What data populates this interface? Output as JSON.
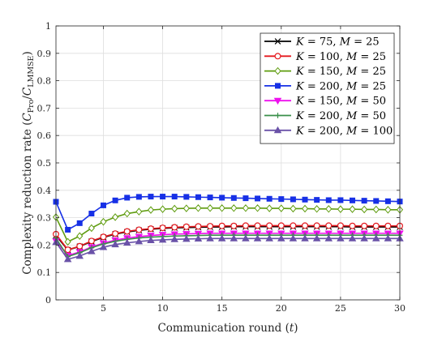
{
  "chart_data": {
    "type": "line",
    "xlabel": "Communication round (t)",
    "ylabel": "Complexity reduction rate (C_Pro/C_LMMSE)",
    "xlabel_parts": {
      "text": "Communication round (",
      "var": "t",
      "close": ")"
    },
    "ylabel_parts": {
      "text": "Complexity reduction rate (",
      "num": "C",
      "num_sub": "Pro",
      "den": "C",
      "den_sub": "LMMSE",
      "close": ")"
    },
    "xlim": [
      1,
      30
    ],
    "ylim": [
      0,
      1
    ],
    "xticks": [
      "5",
      "10",
      "15",
      "20",
      "25",
      "30"
    ],
    "yticks": [
      "0",
      "0.1",
      "0.2",
      "0.3",
      "0.4",
      "0.5",
      "0.6",
      "0.7",
      "0.8",
      "0.9",
      "1"
    ],
    "grid": true,
    "legend_position": "top-right",
    "x": [
      1,
      2,
      3,
      4,
      5,
      6,
      7,
      8,
      9,
      10,
      11,
      12,
      13,
      14,
      15,
      16,
      17,
      18,
      19,
      20,
      21,
      22,
      23,
      24,
      25,
      26,
      27,
      28,
      29,
      30
    ],
    "series": [
      {
        "name": "K = 75, M = 25",
        "K": "75",
        "M": "25",
        "color": "#000000",
        "marker": "x",
        "values": [
          0.235,
          0.182,
          0.195,
          0.213,
          0.228,
          0.24,
          0.248,
          0.254,
          0.258,
          0.261,
          0.263,
          0.264,
          0.265,
          0.266,
          0.266,
          0.267,
          0.267,
          0.267,
          0.267,
          0.267,
          0.267,
          0.267,
          0.267,
          0.267,
          0.267,
          0.266,
          0.266,
          0.266,
          0.266,
          0.266
        ]
      },
      {
        "name": "K = 100, M = 25",
        "K": "100",
        "M": "25",
        "color": "#e5191f",
        "marker": "circle",
        "values": [
          0.24,
          0.183,
          0.196,
          0.215,
          0.23,
          0.242,
          0.25,
          0.256,
          0.26,
          0.263,
          0.265,
          0.267,
          0.268,
          0.269,
          0.27,
          0.27,
          0.271,
          0.271,
          0.271,
          0.271,
          0.271,
          0.271,
          0.271,
          0.271,
          0.271,
          0.27,
          0.27,
          0.27,
          0.27,
          0.27
        ]
      },
      {
        "name": "K = 150, M = 25",
        "K": "150",
        "M": "25",
        "color": "#5f9c0f",
        "marker": "diamond",
        "values": [
          0.302,
          0.212,
          0.233,
          0.262,
          0.285,
          0.302,
          0.315,
          0.322,
          0.328,
          0.331,
          0.333,
          0.334,
          0.335,
          0.335,
          0.335,
          0.335,
          0.335,
          0.335,
          0.334,
          0.334,
          0.333,
          0.333,
          0.332,
          0.332,
          0.331,
          0.331,
          0.33,
          0.33,
          0.329,
          0.329
        ]
      },
      {
        "name": "K = 200, M = 25",
        "K": "200",
        "M": "25",
        "color": "#1730e6",
        "marker": "square",
        "values": [
          0.358,
          0.256,
          0.28,
          0.315,
          0.345,
          0.363,
          0.373,
          0.376,
          0.377,
          0.377,
          0.377,
          0.376,
          0.375,
          0.374,
          0.373,
          0.372,
          0.371,
          0.37,
          0.369,
          0.368,
          0.367,
          0.366,
          0.365,
          0.364,
          0.364,
          0.363,
          0.362,
          0.361,
          0.36,
          0.359
        ]
      },
      {
        "name": "K = 150, M = 50",
        "K": "150",
        "M": "50",
        "color": "#ee10ee",
        "marker": "triangle-down",
        "values": [
          0.215,
          0.162,
          0.175,
          0.193,
          0.207,
          0.218,
          0.226,
          0.231,
          0.235,
          0.238,
          0.24,
          0.241,
          0.242,
          0.243,
          0.243,
          0.243,
          0.243,
          0.243,
          0.243,
          0.243,
          0.243,
          0.243,
          0.243,
          0.243,
          0.243,
          0.243,
          0.243,
          0.243,
          0.243,
          0.243
        ]
      },
      {
        "name": "K = 200, M = 50",
        "K": "200",
        "M": "50",
        "color": "#3a8f4a",
        "marker": "plus",
        "values": [
          0.225,
          0.158,
          0.172,
          0.19,
          0.204,
          0.214,
          0.221,
          0.226,
          0.229,
          0.231,
          0.233,
          0.234,
          0.235,
          0.236,
          0.236,
          0.236,
          0.236,
          0.236,
          0.236,
          0.236,
          0.236,
          0.236,
          0.236,
          0.236,
          0.236,
          0.236,
          0.236,
          0.236,
          0.236,
          0.236
        ]
      },
      {
        "name": "K = 200, M = 100",
        "K": "200",
        "M": "100",
        "color": "#6a52a8",
        "marker": "triangle-up",
        "values": [
          0.21,
          0.148,
          0.16,
          0.177,
          0.192,
          0.202,
          0.208,
          0.213,
          0.217,
          0.219,
          0.221,
          0.222,
          0.223,
          0.224,
          0.224,
          0.224,
          0.224,
          0.224,
          0.224,
          0.224,
          0.224,
          0.224,
          0.224,
          0.224,
          0.224,
          0.224,
          0.224,
          0.224,
          0.224,
          0.224
        ]
      }
    ]
  }
}
